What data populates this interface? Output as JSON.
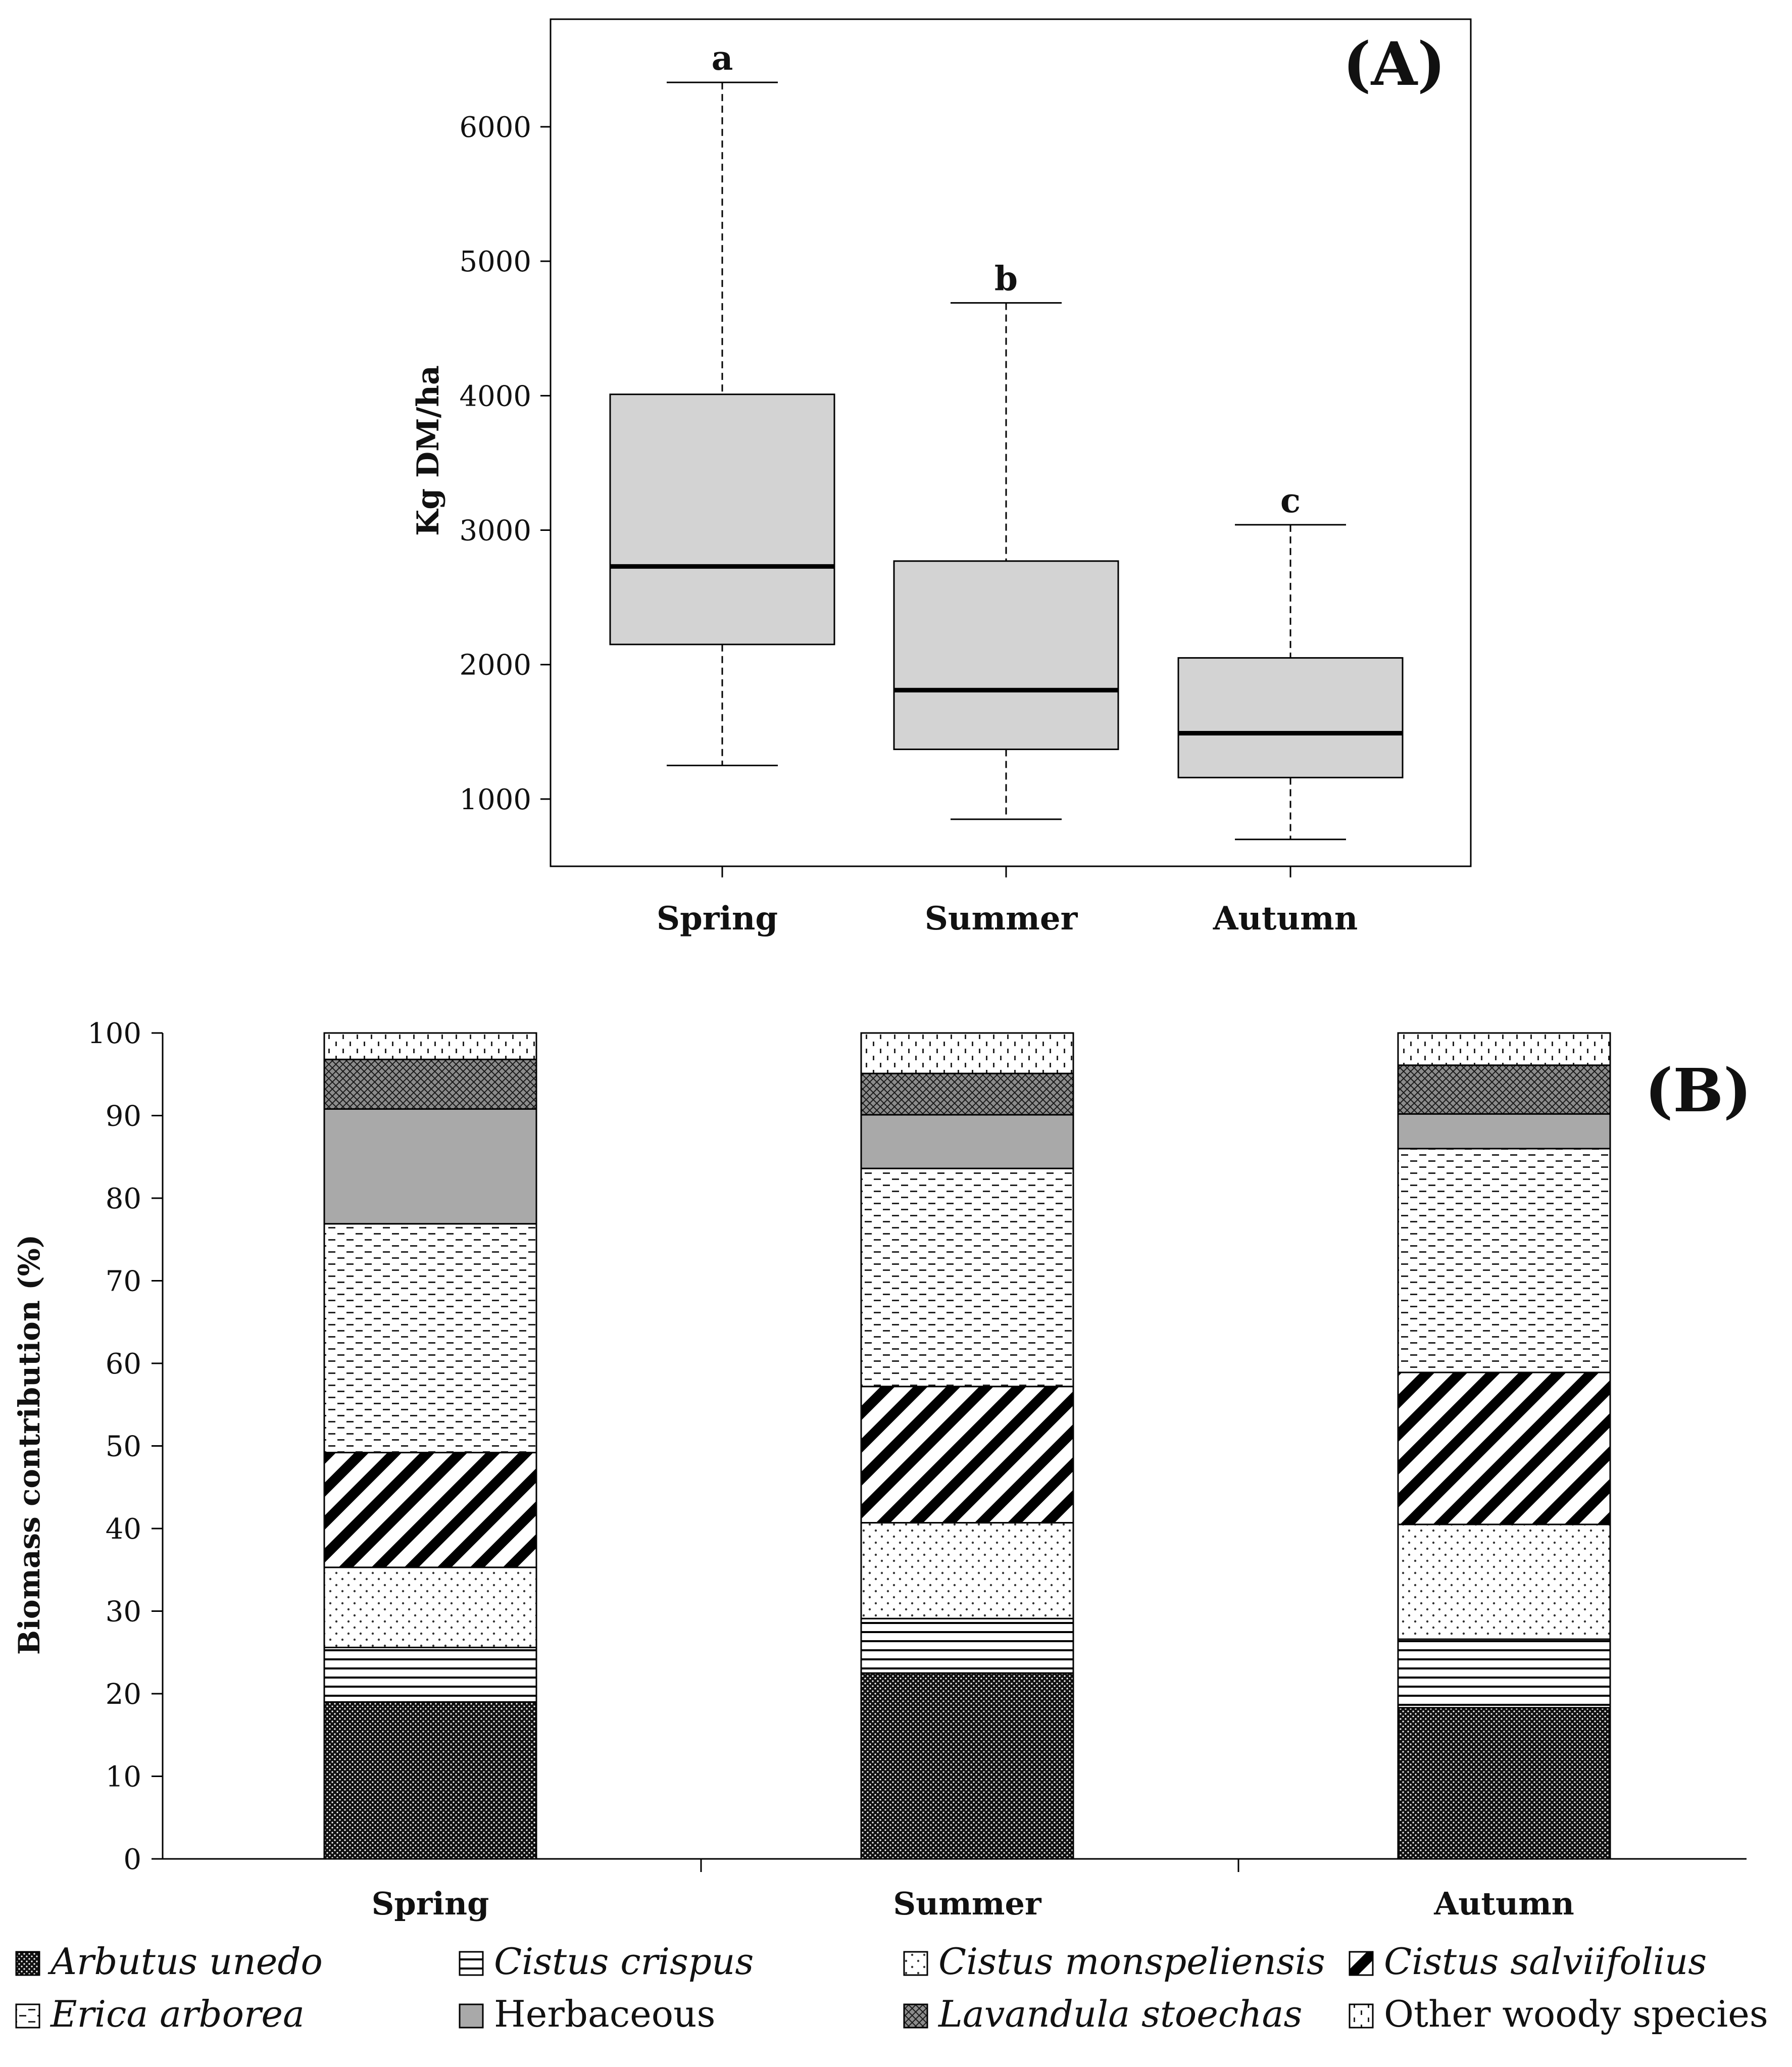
{
  "chart_data": [
    {
      "type": "box",
      "panel_label": "(A)",
      "ylabel": "Kg DM/ha",
      "ylim": [
        500,
        6800
      ],
      "yticks": [
        1000,
        2000,
        3000,
        4000,
        5000,
        6000
      ],
      "categories": [
        "Spring",
        "Summer",
        "Autumn"
      ],
      "boxes": [
        {
          "name": "Spring",
          "min": 1250,
          "q1": 2150,
          "median": 2730,
          "q3": 4010,
          "max": 6330,
          "letter": "a"
        },
        {
          "name": "Summer",
          "min": 850,
          "q1": 1370,
          "median": 1810,
          "q3": 2770,
          "max": 4690,
          "letter": "b"
        },
        {
          "name": "Autumn",
          "min": 700,
          "q1": 1160,
          "median": 1490,
          "q3": 2050,
          "max": 3040,
          "letter": "c"
        }
      ],
      "colors": {
        "box_fill": "#d3d3d3",
        "line": "#000000"
      }
    },
    {
      "type": "stacked_bar",
      "panel_label": "(B)",
      "ylabel": "Biomass contribution (%)",
      "ylim": [
        0,
        100
      ],
      "yticks": [
        0,
        10,
        20,
        30,
        40,
        50,
        60,
        70,
        80,
        90,
        100
      ],
      "categories": [
        "Spring",
        "Summer",
        "Autumn"
      ],
      "series": [
        {
          "name": "Arbutus unedo",
          "pattern": "dense-dots",
          "values": [
            19,
            22.5,
            18.3
          ]
        },
        {
          "name": "Cistus crispus",
          "pattern": "horizontal-lines",
          "values": [
            6.6,
            6.6,
            8.3
          ]
        },
        {
          "name": "Cistus monspeliensis",
          "pattern": "sparse-dots",
          "values": [
            9.7,
            11.6,
            13.9
          ]
        },
        {
          "name": "Cistus salviifolius",
          "pattern": "diagonal",
          "values": [
            13.9,
            16.5,
            18.4
          ]
        },
        {
          "name": "Erica arborea",
          "pattern": "dashes",
          "values": [
            27.7,
            26.4,
            27.1
          ]
        },
        {
          "name": "Herbaceous",
          "pattern": "solid-gray",
          "values": [
            13.9,
            6.5,
            4.2
          ]
        },
        {
          "name": "Lavandula stoechas",
          "pattern": "crosshatch",
          "values": [
            6,
            5,
            5.9
          ]
        },
        {
          "name": "Other woody species",
          "pattern": "vertical-dashes",
          "values": [
            3.2,
            4.9,
            3.9
          ]
        }
      ]
    }
  ]
}
